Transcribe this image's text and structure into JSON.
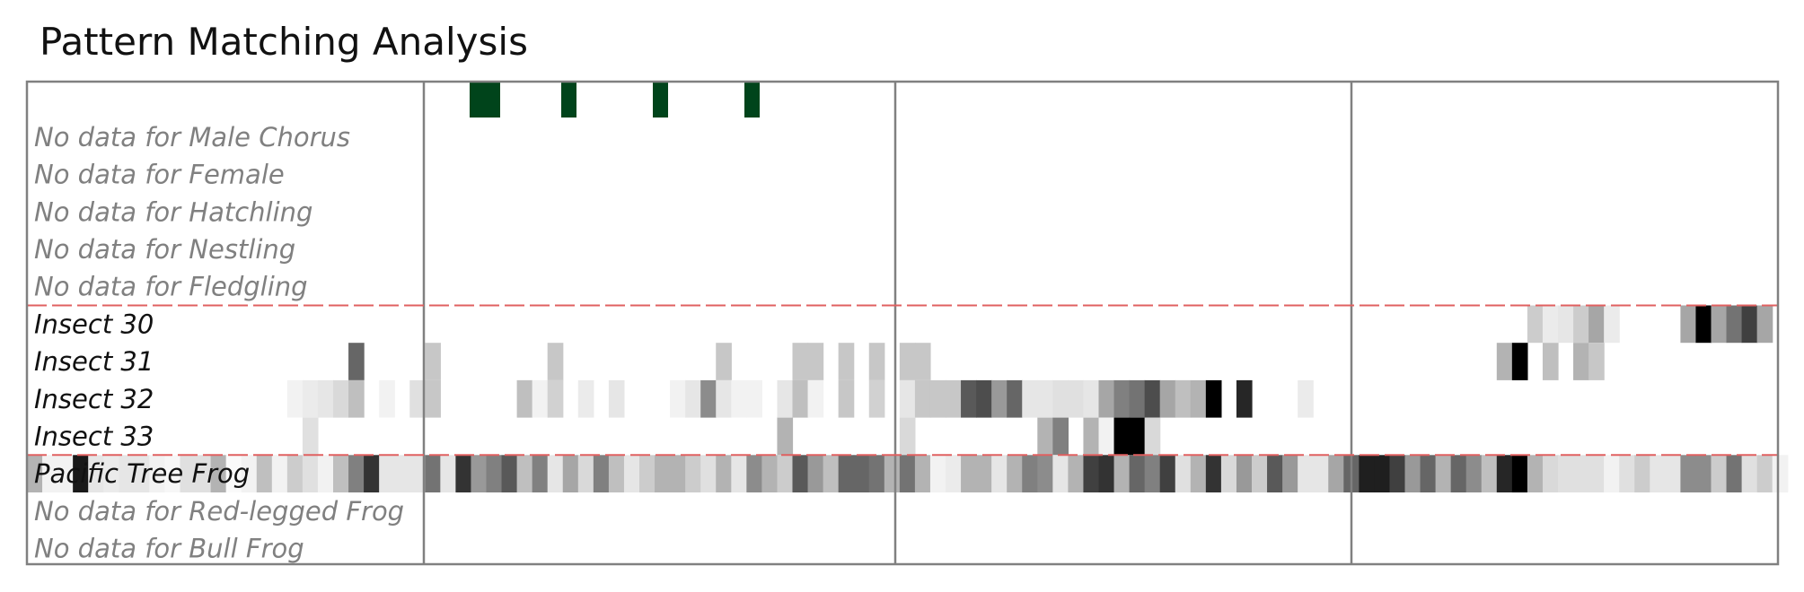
{
  "title": "Pattern Matching Analysis",
  "colors": {
    "frame": "#808080",
    "section_divider": "#e06060",
    "indicator": "#00441b",
    "label_active": "#111111",
    "label_inactive": "#808080",
    "cell_ramp": [
      "#ffffff",
      "#000000"
    ]
  },
  "chart_data": {
    "type": "heatmap",
    "title": "Pattern Matching Analysis",
    "xlabel": "",
    "ylabel": "",
    "n_columns": 115,
    "value_range": [
      0,
      1
    ],
    "column_group_boundaries": [
      31,
      61
    ],
    "row_divider_after": [
      4,
      8
    ],
    "indicator_row": {
      "name": "",
      "cells": [
        {
          "start": 3,
          "span": 2
        },
        {
          "start": 9,
          "span": 1
        },
        {
          "start": 15,
          "span": 1
        },
        {
          "start": 21,
          "span": 1
        }
      ]
    },
    "rows": [
      {
        "label": "No data for Male Chorus",
        "has_data": false,
        "cells": []
      },
      {
        "label": "No data for Female",
        "has_data": false,
        "cells": []
      },
      {
        "label": "No data for Hatchling",
        "has_data": false,
        "cells": []
      },
      {
        "label": "No data for Nestling",
        "has_data": false,
        "cells": []
      },
      {
        "label": "No data for Fledgling",
        "has_data": false,
        "cells": []
      },
      {
        "label": "Insect 30",
        "has_data": true,
        "cells": [
          [
            98,
            0.2
          ],
          [
            99,
            0.08
          ],
          [
            100,
            0.1
          ],
          [
            101,
            0.2
          ],
          [
            102,
            0.35
          ],
          [
            103,
            0.08
          ],
          [
            108,
            0.35
          ],
          [
            109,
            1.0
          ],
          [
            110,
            0.35
          ],
          [
            111,
            0.55
          ],
          [
            112,
            0.75
          ],
          [
            113,
            0.35
          ]
        ]
      },
      {
        "label": "Insect 31",
        "has_data": true,
        "cells": [
          [
            21,
            0.6
          ],
          [
            26,
            0.22
          ],
          [
            34,
            0.22
          ],
          [
            45,
            0.22
          ],
          [
            50,
            0.22
          ],
          [
            51,
            0.22
          ],
          [
            53,
            0.22
          ],
          [
            55,
            0.22
          ],
          [
            57,
            0.22
          ],
          [
            58,
            0.22
          ],
          [
            96,
            0.3
          ],
          [
            97,
            1.0
          ],
          [
            99,
            0.25
          ],
          [
            101,
            0.3
          ],
          [
            102,
            0.22
          ]
        ]
      },
      {
        "label": "Insect 32",
        "has_data": true,
        "cells": [
          [
            17,
            0.05
          ],
          [
            18,
            0.08
          ],
          [
            19,
            0.1
          ],
          [
            20,
            0.15
          ],
          [
            21,
            0.25
          ],
          [
            23,
            0.05
          ],
          [
            25,
            0.12
          ],
          [
            26,
            0.22
          ],
          [
            32,
            0.25
          ],
          [
            33,
            0.05
          ],
          [
            34,
            0.18
          ],
          [
            36,
            0.08
          ],
          [
            38,
            0.1
          ],
          [
            42,
            0.05
          ],
          [
            43,
            0.1
          ],
          [
            44,
            0.45
          ],
          [
            45,
            0.1
          ],
          [
            46,
            0.05
          ],
          [
            47,
            0.05
          ],
          [
            49,
            0.1
          ],
          [
            50,
            0.25
          ],
          [
            51,
            0.05
          ],
          [
            53,
            0.22
          ],
          [
            55,
            0.18
          ],
          [
            57,
            0.1
          ],
          [
            58,
            0.22
          ],
          [
            59,
            0.22
          ],
          [
            60,
            0.22
          ],
          [
            61,
            0.65
          ],
          [
            62,
            0.7
          ],
          [
            63,
            0.4
          ],
          [
            64,
            0.6
          ],
          [
            65,
            0.1
          ],
          [
            66,
            0.1
          ],
          [
            67,
            0.12
          ],
          [
            68,
            0.12
          ],
          [
            69,
            0.1
          ],
          [
            70,
            0.35
          ],
          [
            71,
            0.5
          ],
          [
            72,
            0.55
          ],
          [
            73,
            0.7
          ],
          [
            74,
            0.35
          ],
          [
            75,
            0.25
          ],
          [
            76,
            0.3
          ],
          [
            77,
            1.0
          ],
          [
            79,
            0.85
          ],
          [
            83,
            0.08
          ]
        ]
      },
      {
        "label": "Insect 33",
        "has_data": true,
        "cells": [
          [
            18,
            0.12
          ],
          [
            49,
            0.3
          ],
          [
            57,
            0.15
          ],
          [
            66,
            0.3
          ],
          [
            67,
            0.5
          ],
          [
            69,
            0.3
          ],
          [
            70,
            0.05
          ],
          [
            71,
            1.0
          ],
          [
            72,
            1.0
          ],
          [
            73,
            0.15
          ]
        ]
      },
      {
        "label": "Pacific Tree Frog",
        "has_data": true,
        "cells": [
          [
            0,
            0.3
          ],
          [
            1,
            0.05
          ],
          [
            2,
            0.05
          ],
          [
            3,
            0.9
          ],
          [
            4,
            0.1
          ],
          [
            5,
            0.08
          ],
          [
            6,
            0.1
          ],
          [
            7,
            0.1
          ],
          [
            8,
            0.05
          ],
          [
            9,
            0.03
          ],
          [
            10,
            0.12
          ],
          [
            11,
            0.12
          ],
          [
            12,
            0.3
          ],
          [
            13,
            0.02
          ],
          [
            14,
            0.05
          ],
          [
            15,
            0.25
          ],
          [
            16,
            0.05
          ],
          [
            17,
            0.2
          ],
          [
            18,
            0.12
          ],
          [
            19,
            0.05
          ],
          [
            20,
            0.25
          ],
          [
            21,
            0.5
          ],
          [
            22,
            0.8
          ],
          [
            23,
            0.1
          ],
          [
            24,
            0.1
          ],
          [
            25,
            0.1
          ],
          [
            26,
            0.55
          ],
          [
            27,
            0.1
          ],
          [
            28,
            0.8
          ],
          [
            29,
            0.4
          ],
          [
            30,
            0.5
          ],
          [
            31,
            0.65
          ],
          [
            32,
            0.25
          ],
          [
            33,
            0.5
          ],
          [
            34,
            0.1
          ],
          [
            35,
            0.35
          ],
          [
            36,
            0.15
          ],
          [
            37,
            0.5
          ],
          [
            38,
            0.25
          ],
          [
            39,
            0.1
          ],
          [
            40,
            0.2
          ],
          [
            41,
            0.3
          ],
          [
            42,
            0.3
          ],
          [
            43,
            0.2
          ],
          [
            44,
            0.12
          ],
          [
            45,
            0.3
          ],
          [
            46,
            0.1
          ],
          [
            47,
            0.45
          ],
          [
            48,
            0.3
          ],
          [
            49,
            0.2
          ],
          [
            50,
            0.65
          ],
          [
            51,
            0.4
          ],
          [
            52,
            0.25
          ],
          [
            53,
            0.6
          ],
          [
            54,
            0.6
          ],
          [
            55,
            0.55
          ],
          [
            56,
            0.3
          ],
          [
            57,
            0.55
          ],
          [
            58,
            0.3
          ],
          [
            59,
            0.05
          ],
          [
            60,
            0.08
          ],
          [
            61,
            0.3
          ],
          [
            62,
            0.3
          ],
          [
            63,
            0.1
          ],
          [
            64,
            0.3
          ],
          [
            65,
            0.5
          ],
          [
            66,
            0.45
          ],
          [
            67,
            0.1
          ],
          [
            68,
            0.3
          ],
          [
            69,
            0.75
          ],
          [
            70,
            0.8
          ],
          [
            71,
            0.3
          ],
          [
            72,
            0.6
          ],
          [
            73,
            0.5
          ],
          [
            74,
            0.75
          ],
          [
            75,
            0.12
          ],
          [
            76,
            0.3
          ],
          [
            77,
            0.8
          ],
          [
            78,
            0.15
          ],
          [
            79,
            0.4
          ],
          [
            80,
            0.2
          ],
          [
            81,
            0.65
          ],
          [
            82,
            0.4
          ],
          [
            83,
            0.1
          ],
          [
            84,
            0.1
          ],
          [
            85,
            0.35
          ],
          [
            86,
            0.6
          ],
          [
            87,
            0.88
          ],
          [
            88,
            0.88
          ],
          [
            89,
            0.75
          ],
          [
            90,
            0.4
          ],
          [
            91,
            0.6
          ],
          [
            92,
            0.3
          ],
          [
            93,
            0.6
          ],
          [
            94,
            0.45
          ],
          [
            95,
            0.25
          ],
          [
            96,
            0.85
          ],
          [
            97,
            1.0
          ],
          [
            98,
            0.3
          ],
          [
            99,
            0.15
          ],
          [
            100,
            0.12
          ],
          [
            101,
            0.12
          ],
          [
            102,
            0.12
          ],
          [
            103,
            0.05
          ],
          [
            104,
            0.12
          ],
          [
            105,
            0.2
          ],
          [
            106,
            0.1
          ],
          [
            107,
            0.1
          ],
          [
            108,
            0.45
          ],
          [
            109,
            0.45
          ],
          [
            110,
            0.2
          ],
          [
            111,
            0.55
          ],
          [
            112,
            0.12
          ],
          [
            113,
            0.2
          ],
          [
            114,
            0.05
          ]
        ]
      },
      {
        "label": "No data for Red-legged Frog",
        "has_data": false,
        "cells": []
      },
      {
        "label": "No data for Bull Frog",
        "has_data": false,
        "cells": []
      }
    ]
  }
}
